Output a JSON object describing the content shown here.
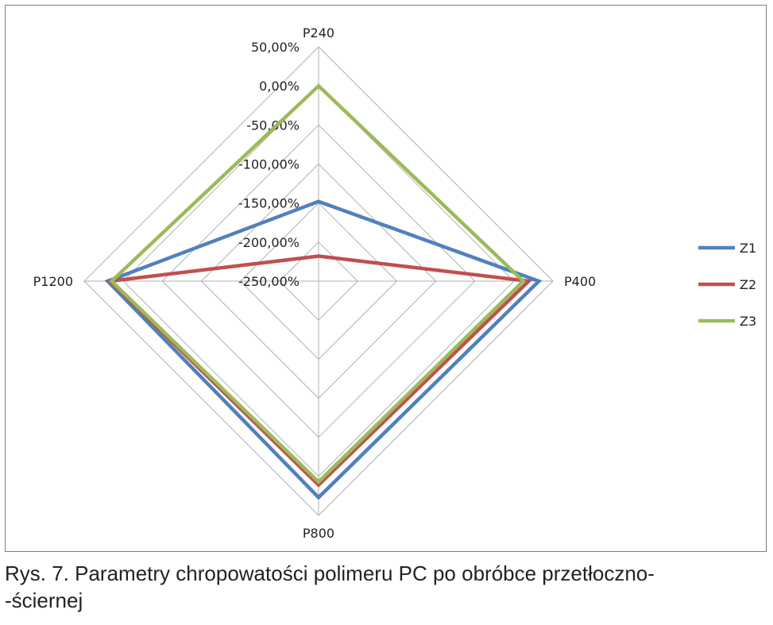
{
  "chart_data": {
    "type": "radar",
    "axes": [
      "P240",
      "P400",
      "P800",
      "P1200"
    ],
    "rlim": [
      -250,
      50
    ],
    "tick_values": [
      50,
      0,
      -50,
      -100,
      -150,
      -200,
      -250
    ],
    "tick_labels": [
      "50,00%",
      "0,00%",
      "-50,00%",
      "-100,00%",
      "-150,00%",
      "-200,00%",
      "-250,00%"
    ],
    "grid": true,
    "legend_position": "right",
    "series": [
      {
        "name": "Z1",
        "color": "#4f81bd",
        "values": [
          -148,
          32,
          27,
          20
        ]
      },
      {
        "name": "Z2",
        "color": "#c0504d",
        "values": [
          -218,
          19,
          11,
          17
        ]
      },
      {
        "name": "Z3",
        "color": "#9bbb59",
        "values": [
          0,
          12,
          7,
          15
        ]
      }
    ]
  },
  "caption": {
    "line1": "Rys. 7. Parametry chropowatości polimeru PC po obróbce przetłoczno-",
    "line2": "-ściernej"
  }
}
